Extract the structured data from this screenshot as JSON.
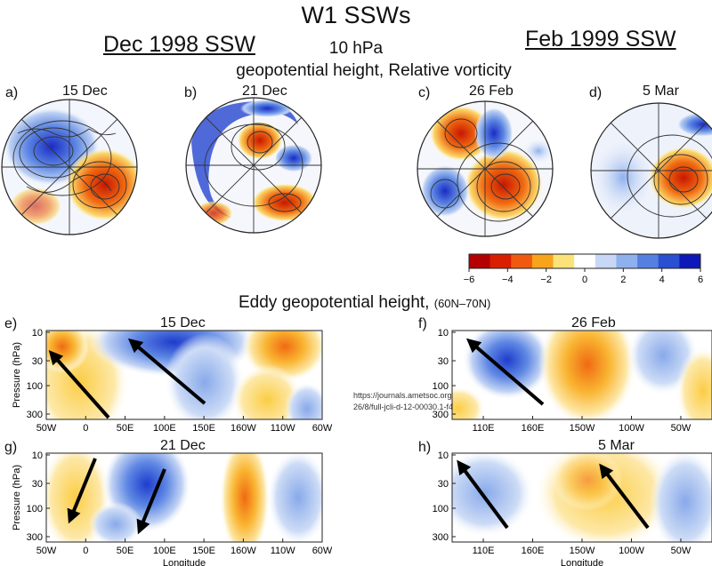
{
  "header": {
    "title": "W1 SSWs",
    "case_left": "Dec 1998 SSW",
    "case_right": "Feb  1999 SSW",
    "level": "10 hPa",
    "map_fields": "geopotential height, Relative vorticity",
    "eddy_title": "Eddy geopotential height,",
    "eddy_band": "(60N–70N)"
  },
  "source_url": "https://journals.ametsoc.org/view/journals/clim/26/8/full-jcli-d-12-00030.1-f4.jpg",
  "chart_data": [
    {
      "panel": "a)",
      "title": "15 Dec",
      "type": "heatmap",
      "projection": "polar-stereographic",
      "fields": [
        "geopotential height",
        "relative vorticity"
      ]
    },
    {
      "panel": "b)",
      "title": "21 Dec",
      "type": "heatmap",
      "projection": "polar-stereographic",
      "fields": [
        "geopotential height",
        "relative vorticity"
      ]
    },
    {
      "panel": "c)",
      "title": "26 Feb",
      "type": "heatmap",
      "projection": "polar-stereographic",
      "fields": [
        "geopotential height",
        "relative vorticity"
      ]
    },
    {
      "panel": "d)",
      "title": "5 Mar",
      "type": "heatmap",
      "projection": "polar-stereographic",
      "fields": [
        "geopotential height",
        "relative vorticity"
      ]
    },
    {
      "type": "colorbar",
      "ticks": [
        "−6",
        "−4",
        "−2",
        "0",
        "2",
        "4",
        "6"
      ],
      "range": [
        -6,
        6
      ],
      "colors": [
        "#b40000",
        "#d91f00",
        "#f05a10",
        "#f7a31b",
        "#fbe37a",
        "#ffffff",
        "#c7d7f5",
        "#8fb0ee",
        "#5580e0",
        "#2a4fd0",
        "#0e18b8"
      ]
    },
    {
      "panel": "e)",
      "title": "15 Dec",
      "type": "heatmap",
      "ylabel": "Pressure (hPa)",
      "y_ticks": [
        "10",
        "30",
        "100",
        "300"
      ],
      "x_ticks": [
        "50W",
        "0",
        "50E",
        "100E",
        "150E",
        "160W",
        "110W",
        "60W"
      ]
    },
    {
      "panel": "f)",
      "title": "26 Feb",
      "type": "heatmap",
      "y_ticks": [
        "10",
        "30",
        "100",
        "300"
      ],
      "x_ticks": [
        "110E",
        "160E",
        "150W",
        "100W",
        "50W"
      ]
    },
    {
      "panel": "g)",
      "title": "21 Dec",
      "type": "heatmap",
      "ylabel": "Pressure (hPa)",
      "xlabel": "Longitude",
      "y_ticks": [
        "10",
        "30",
        "100",
        "300"
      ],
      "x_ticks": [
        "50W",
        "0",
        "50E",
        "100E",
        "150E",
        "160W",
        "110W",
        "60W"
      ]
    },
    {
      "panel": "h)",
      "title": "5 Mar",
      "type": "heatmap",
      "xlabel": "Longitude",
      "y_ticks": [
        "10",
        "30",
        "100",
        "300"
      ],
      "x_ticks": [
        "110E",
        "160E",
        "150W",
        "100W",
        "50W"
      ]
    }
  ]
}
